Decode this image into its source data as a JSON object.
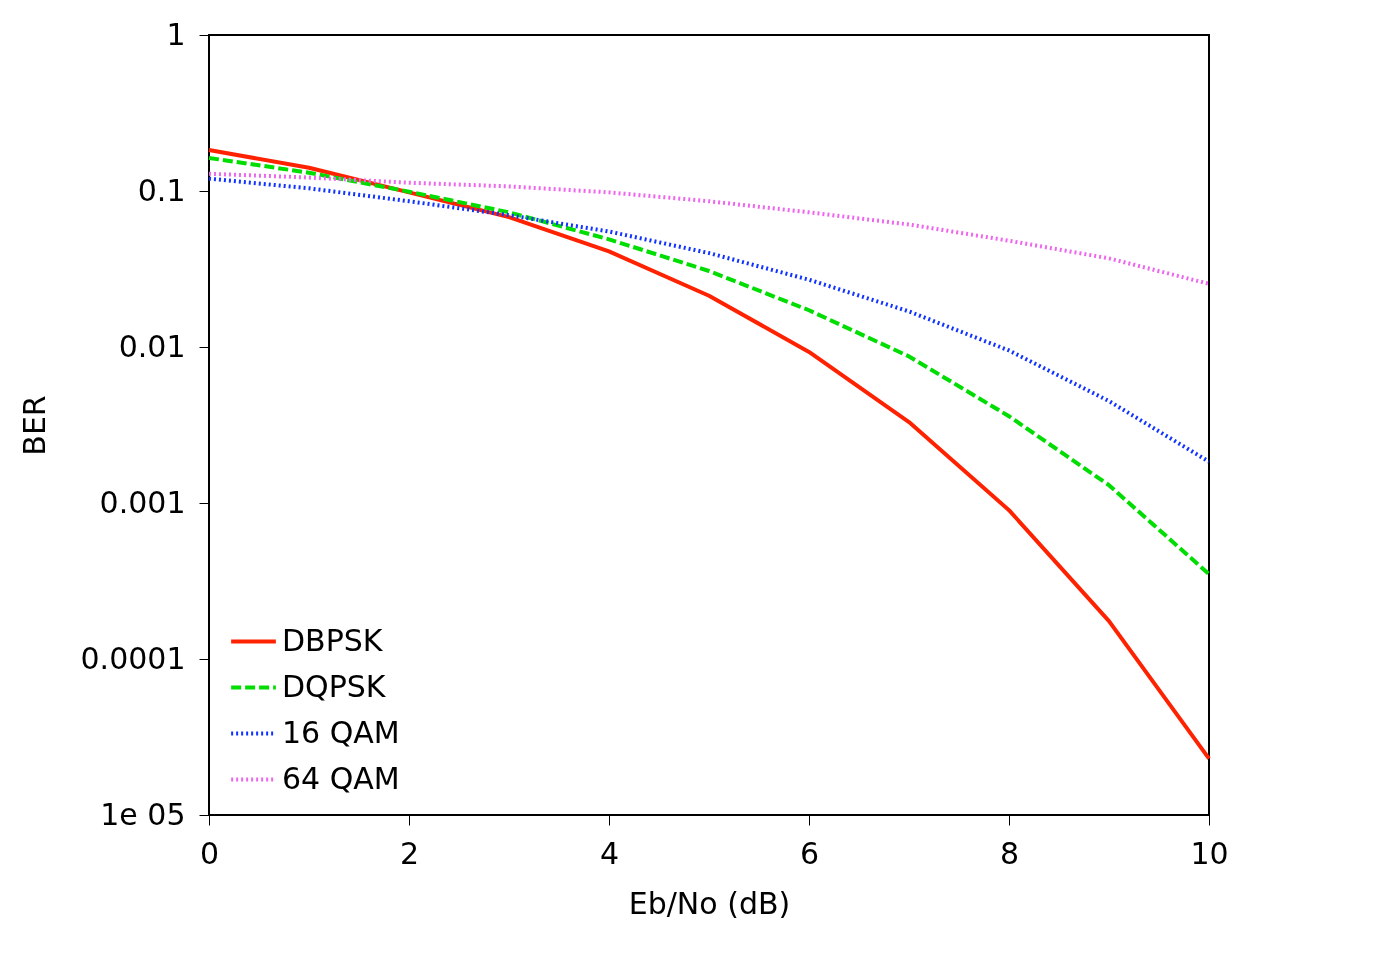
{
  "chart_data": {
    "type": "line",
    "xlabel": "Eb/No (dB)",
    "ylabel": "BER",
    "x": [
      0,
      1,
      2,
      3,
      4,
      5,
      6,
      7,
      8,
      9,
      10
    ],
    "series": [
      {
        "name": "DBPSK",
        "color": "#ff2200",
        "line_style": "solid",
        "values": [
          0.183,
          0.141,
          0.098,
          0.068,
          0.041,
          0.0213,
          0.0093,
          0.0033,
          0.0009,
          0.000175,
          2.3e-05
        ]
      },
      {
        "name": "DQPSK",
        "color": "#00dd00",
        "line_style": "dashed",
        "values": [
          0.163,
          0.131,
          0.099,
          0.073,
          0.049,
          0.0307,
          0.0172,
          0.0087,
          0.0036,
          0.0013,
          0.00035
        ]
      },
      {
        "name": "16  QAM",
        "color": "#1133ff",
        "line_style": "dotted",
        "values": [
          0.12,
          0.104,
          0.086,
          0.07,
          0.055,
          0.04,
          0.027,
          0.0169,
          0.0095,
          0.0045,
          0.00184
        ]
      },
      {
        "name": "64  QAM",
        "color": "#ee66ee",
        "line_style": "dotted",
        "values": [
          0.129,
          0.122,
          0.113,
          0.107,
          0.098,
          0.086,
          0.073,
          0.061,
          0.048,
          0.037,
          0.0254
        ]
      }
    ],
    "xlim": [
      0,
      10
    ],
    "xticks": [
      0,
      2,
      4,
      6,
      8,
      10
    ],
    "log": true,
    "ylim": [
      1e-05,
      1
    ],
    "yticks": [
      1,
      0.1,
      0.01,
      0.001,
      0.0001,
      {
        "value": 1e-05,
        "label": "1e 05"
      }
    ],
    "legend": "bottom left",
    "grid": false
  }
}
